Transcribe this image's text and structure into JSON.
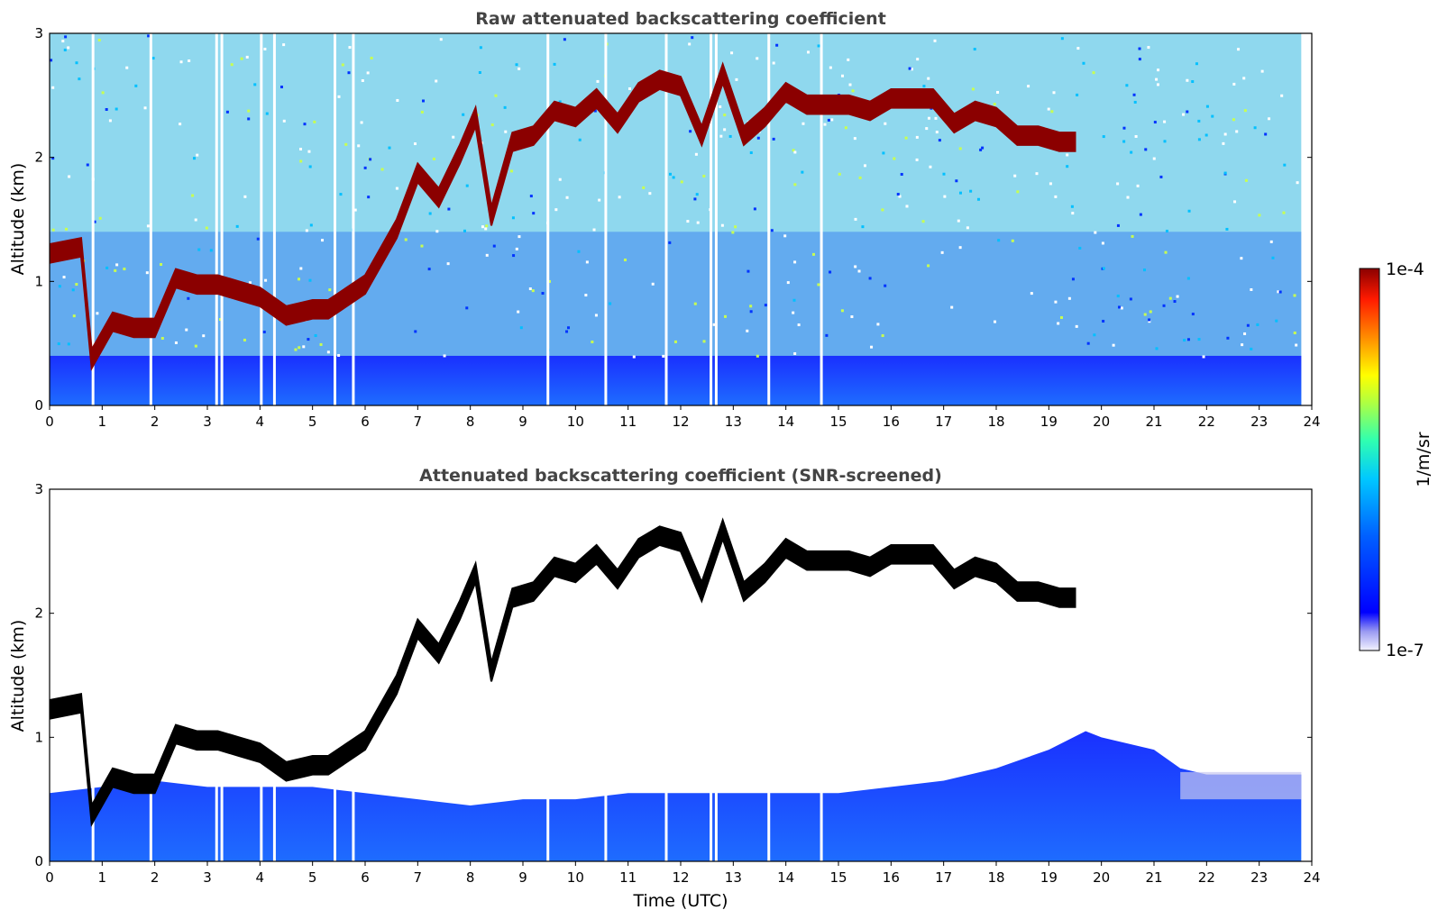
{
  "chart_data": [
    {
      "type": "heatmap",
      "title": "Raw attenuated backscattering coefficient",
      "xlabel": "",
      "ylabel": "Altitude (km)",
      "xlim": [
        0,
        24
      ],
      "ylim": [
        0,
        3
      ],
      "xticks": [
        "0",
        "1",
        "2",
        "3",
        "4",
        "5",
        "6",
        "7",
        "8",
        "9",
        "10",
        "11",
        "12",
        "13",
        "14",
        "15",
        "16",
        "17",
        "18",
        "19",
        "20",
        "21",
        "22",
        "23",
        "24"
      ],
      "yticks": [
        "0",
        "1",
        "2",
        "3"
      ],
      "screened": false,
      "colormap": "jet",
      "cloud_layer_color": "#8b0000",
      "cloud_layer_top_km": [
        [
          0.0,
          1.3
        ],
        [
          0.6,
          1.35
        ],
        [
          0.8,
          0.45
        ],
        [
          1.2,
          0.75
        ],
        [
          1.6,
          0.7
        ],
        [
          2.0,
          0.7
        ],
        [
          2.4,
          1.1
        ],
        [
          2.8,
          1.05
        ],
        [
          3.2,
          1.05
        ],
        [
          3.6,
          1.0
        ],
        [
          4.0,
          0.95
        ],
        [
          4.5,
          0.8
        ],
        [
          5.0,
          0.85
        ],
        [
          5.3,
          0.85
        ],
        [
          6.0,
          1.05
        ],
        [
          6.6,
          1.5
        ],
        [
          7.0,
          1.95
        ],
        [
          7.4,
          1.75
        ],
        [
          7.8,
          2.1
        ],
        [
          8.1,
          2.4
        ],
        [
          8.4,
          1.6
        ],
        [
          8.8,
          2.2
        ],
        [
          9.2,
          2.25
        ],
        [
          9.6,
          2.45
        ],
        [
          10.0,
          2.4
        ],
        [
          10.4,
          2.55
        ],
        [
          10.8,
          2.35
        ],
        [
          11.2,
          2.6
        ],
        [
          11.6,
          2.7
        ],
        [
          12.0,
          2.65
        ],
        [
          12.4,
          2.25
        ],
        [
          12.8,
          2.75
        ],
        [
          13.2,
          2.25
        ],
        [
          13.6,
          2.4
        ],
        [
          14.0,
          2.6
        ],
        [
          14.4,
          2.5
        ],
        [
          14.8,
          2.5
        ],
        [
          15.2,
          2.5
        ],
        [
          15.6,
          2.45
        ],
        [
          16.0,
          2.55
        ],
        [
          16.4,
          2.55
        ],
        [
          16.8,
          2.55
        ],
        [
          17.2,
          2.35
        ],
        [
          17.6,
          2.45
        ],
        [
          18.0,
          2.4
        ],
        [
          18.4,
          2.25
        ],
        [
          18.8,
          2.25
        ],
        [
          19.2,
          2.2
        ],
        [
          19.5,
          2.2
        ]
      ],
      "aerosol_layer_top_km": 0.4
    },
    {
      "type": "heatmap",
      "title": "Attenuated backscattering coefficient (SNR-screened)",
      "xlabel": "Time (UTC)",
      "ylabel": "Altitude (km)",
      "xlim": [
        0,
        24
      ],
      "ylim": [
        0,
        3
      ],
      "xticks": [
        "0",
        "1",
        "2",
        "3",
        "4",
        "5",
        "6",
        "7",
        "8",
        "9",
        "10",
        "11",
        "12",
        "13",
        "14",
        "15",
        "16",
        "17",
        "18",
        "19",
        "20",
        "21",
        "22",
        "23",
        "24"
      ],
      "yticks": [
        "0",
        "1",
        "2",
        "3"
      ],
      "screened": true,
      "colormap": "jet",
      "cloud_layer_color": "#000000",
      "cloud_layer_top_km": [
        [
          0.0,
          1.3
        ],
        [
          0.6,
          1.35
        ],
        [
          0.8,
          0.45
        ],
        [
          1.2,
          0.75
        ],
        [
          1.6,
          0.7
        ],
        [
          2.0,
          0.7
        ],
        [
          2.4,
          1.1
        ],
        [
          2.8,
          1.05
        ],
        [
          3.2,
          1.05
        ],
        [
          3.6,
          1.0
        ],
        [
          4.0,
          0.95
        ],
        [
          4.5,
          0.8
        ],
        [
          5.0,
          0.85
        ],
        [
          5.3,
          0.85
        ],
        [
          6.0,
          1.05
        ],
        [
          6.6,
          1.5
        ],
        [
          7.0,
          1.95
        ],
        [
          7.4,
          1.75
        ],
        [
          7.8,
          2.1
        ],
        [
          8.1,
          2.4
        ],
        [
          8.4,
          1.6
        ],
        [
          8.8,
          2.2
        ],
        [
          9.2,
          2.25
        ],
        [
          9.6,
          2.45
        ],
        [
          10.0,
          2.4
        ],
        [
          10.4,
          2.55
        ],
        [
          10.8,
          2.35
        ],
        [
          11.2,
          2.6
        ],
        [
          11.6,
          2.7
        ],
        [
          12.0,
          2.65
        ],
        [
          12.4,
          2.25
        ],
        [
          12.8,
          2.75
        ],
        [
          13.2,
          2.25
        ],
        [
          13.6,
          2.4
        ],
        [
          14.0,
          2.6
        ],
        [
          14.4,
          2.5
        ],
        [
          14.8,
          2.5
        ],
        [
          15.2,
          2.5
        ],
        [
          15.6,
          2.45
        ],
        [
          16.0,
          2.55
        ],
        [
          16.4,
          2.55
        ],
        [
          16.8,
          2.55
        ],
        [
          17.2,
          2.35
        ],
        [
          17.6,
          2.45
        ],
        [
          18.0,
          2.4
        ],
        [
          18.4,
          2.25
        ],
        [
          18.8,
          2.25
        ],
        [
          19.2,
          2.2
        ],
        [
          19.5,
          2.2
        ]
      ],
      "boundary_layer_top_km": [
        [
          0,
          0.55
        ],
        [
          1,
          0.6
        ],
        [
          2,
          0.65
        ],
        [
          3,
          0.6
        ],
        [
          4,
          0.6
        ],
        [
          5,
          0.6
        ],
        [
          6,
          0.55
        ],
        [
          7,
          0.5
        ],
        [
          8,
          0.45
        ],
        [
          9,
          0.5
        ],
        [
          10,
          0.5
        ],
        [
          11,
          0.55
        ],
        [
          12,
          0.55
        ],
        [
          13,
          0.55
        ],
        [
          14,
          0.55
        ],
        [
          15,
          0.55
        ],
        [
          16,
          0.6
        ],
        [
          17,
          0.65
        ],
        [
          18,
          0.75
        ],
        [
          19,
          0.9
        ],
        [
          19.7,
          1.05
        ],
        [
          20,
          1.0
        ],
        [
          21,
          0.9
        ],
        [
          21.5,
          0.75
        ],
        [
          22,
          0.7
        ],
        [
          23,
          0.7
        ],
        [
          23.8,
          0.7
        ]
      ]
    }
  ],
  "colorbar": {
    "label": "1/m/sr",
    "max_label": "1e-4",
    "min_label": "1e-7",
    "scale": "log",
    "range": [
      1e-07,
      0.0001
    ],
    "colors": [
      "#e6e6fa",
      "#b0b0ee",
      "#7b7bff",
      "#0000ff",
      "#0050ff",
      "#00a0ff",
      "#00e0e0",
      "#40ff80",
      "#c0ff40",
      "#ffff00",
      "#ffa000",
      "#ff4000",
      "#e00000",
      "#8b0000"
    ]
  }
}
